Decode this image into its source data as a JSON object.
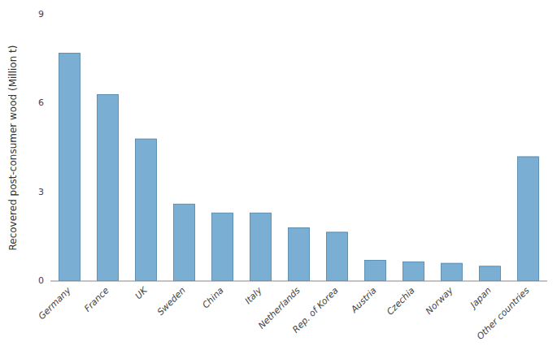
{
  "chart_data": {
    "type": "bar",
    "categories": [
      "Germany",
      "France",
      "UK",
      "Sweden",
      "China",
      "Italy",
      "Netherlands",
      "Rep. of Korea",
      "Austria",
      "Czechia",
      "Norway",
      "Japan",
      "Other countries"
    ],
    "values": [
      7.7,
      6.3,
      4.8,
      2.6,
      2.3,
      2.3,
      1.8,
      1.65,
      0.7,
      0.65,
      0.6,
      0.5,
      4.2
    ],
    "color": "#7aaed3",
    "ylabel": "Recovered post-consumer wood (Million t)",
    "ylim": [
      0,
      9
    ],
    "yticks": [
      0,
      3,
      6,
      9
    ],
    "grid": false
  }
}
